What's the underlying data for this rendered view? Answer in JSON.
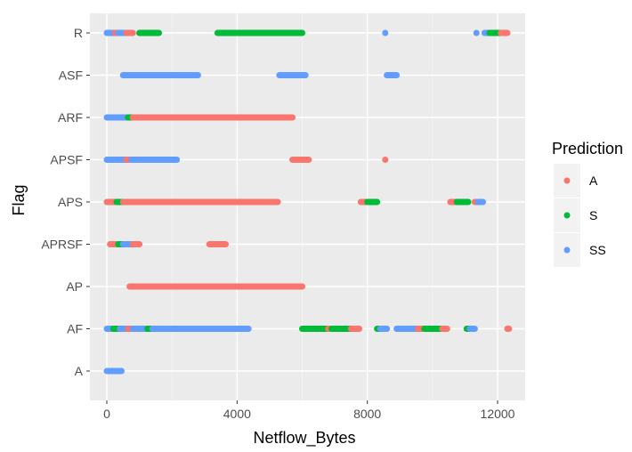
{
  "chart_data": {
    "type": "scatter",
    "xlabel": "Netflow_Bytes",
    "ylabel": "Flag",
    "xlim": [
      -500,
      12900
    ],
    "x_ticks": [
      0,
      4000,
      8000,
      12000
    ],
    "x_tick_labels": [
      "0",
      "4000",
      "8000",
      "12000"
    ],
    "categories": [
      "A",
      "AF",
      "AP",
      "APRSF",
      "APS",
      "APSF",
      "ARF",
      "ASF",
      "R"
    ],
    "grid": true,
    "legend": {
      "title": "Prediction",
      "placement": "right",
      "entries": [
        {
          "label": "A",
          "color": "#F8766D"
        },
        {
          "label": "S",
          "color": "#00BA38"
        },
        {
          "label": "SS",
          "color": "#619CFF"
        }
      ]
    },
    "segments": [
      {
        "flag": "R",
        "series": "SS",
        "x": [
          0,
          250
        ]
      },
      {
        "flag": "R",
        "series": "A",
        "x": [
          250,
          350
        ]
      },
      {
        "flag": "R",
        "series": "SS",
        "x": [
          350,
          600
        ]
      },
      {
        "flag": "R",
        "series": "A",
        "x": [
          600,
          800
        ]
      },
      {
        "flag": "R",
        "series": "S",
        "x": [
          1000,
          1600
        ]
      },
      {
        "flag": "R",
        "series": "S",
        "x": [
          3400,
          6000
        ]
      },
      {
        "flag": "R",
        "series": "SS",
        "x": [
          8550,
          8550
        ]
      },
      {
        "flag": "R",
        "series": "SS",
        "x": [
          11350,
          11350
        ]
      },
      {
        "flag": "R",
        "series": "SS",
        "x": [
          11600,
          11750
        ]
      },
      {
        "flag": "R",
        "series": "S",
        "x": [
          11750,
          12100
        ]
      },
      {
        "flag": "R",
        "series": "A",
        "x": [
          12100,
          12300
        ]
      },
      {
        "flag": "ASF",
        "series": "SS",
        "x": [
          500,
          2800
        ]
      },
      {
        "flag": "ASF",
        "series": "SS",
        "x": [
          5300,
          6100
        ]
      },
      {
        "flag": "ASF",
        "series": "SS",
        "x": [
          8600,
          8900
        ]
      },
      {
        "flag": "ARF",
        "series": "SS",
        "x": [
          0,
          650
        ]
      },
      {
        "flag": "ARF",
        "series": "S",
        "x": [
          650,
          800
        ]
      },
      {
        "flag": "ARF",
        "series": "A",
        "x": [
          800,
          5700
        ]
      },
      {
        "flag": "APSF",
        "series": "SS",
        "x": [
          0,
          600
        ]
      },
      {
        "flag": "APSF",
        "series": "A",
        "x": [
          600,
          750
        ]
      },
      {
        "flag": "APSF",
        "series": "SS",
        "x": [
          750,
          2150
        ]
      },
      {
        "flag": "APSF",
        "series": "A",
        "x": [
          5700,
          6200
        ]
      },
      {
        "flag": "APSF",
        "series": "A",
        "x": [
          8550,
          8550
        ]
      },
      {
        "flag": "APS",
        "series": "A",
        "x": [
          0,
          300
        ]
      },
      {
        "flag": "APS",
        "series": "S",
        "x": [
          300,
          500
        ]
      },
      {
        "flag": "APS",
        "series": "A",
        "x": [
          500,
          5250
        ]
      },
      {
        "flag": "APS",
        "series": "A",
        "x": [
          7800,
          8000
        ]
      },
      {
        "flag": "APS",
        "series": "S",
        "x": [
          8000,
          8300
        ]
      },
      {
        "flag": "APS",
        "series": "A",
        "x": [
          10550,
          10750
        ]
      },
      {
        "flag": "APS",
        "series": "S",
        "x": [
          10750,
          11100
        ]
      },
      {
        "flag": "APS",
        "series": "A",
        "x": [
          11300,
          11400
        ]
      },
      {
        "flag": "APS",
        "series": "SS",
        "x": [
          11400,
          11550
        ]
      },
      {
        "flag": "APRSF",
        "series": "A",
        "x": [
          100,
          350
        ]
      },
      {
        "flag": "APRSF",
        "series": "S",
        "x": [
          350,
          500
        ]
      },
      {
        "flag": "APRSF",
        "series": "SS",
        "x": [
          500,
          800
        ]
      },
      {
        "flag": "APRSF",
        "series": "A",
        "x": [
          800,
          1000
        ]
      },
      {
        "flag": "APRSF",
        "series": "A",
        "x": [
          3150,
          3650
        ]
      },
      {
        "flag": "AP",
        "series": "A",
        "x": [
          700,
          6000
        ]
      },
      {
        "flag": "AF",
        "series": "SS",
        "x": [
          0,
          200
        ]
      },
      {
        "flag": "AF",
        "series": "S",
        "x": [
          200,
          400
        ]
      },
      {
        "flag": "AF",
        "series": "SS",
        "x": [
          400,
          650
        ]
      },
      {
        "flag": "AF",
        "series": "A",
        "x": [
          650,
          800
        ]
      },
      {
        "flag": "AF",
        "series": "SS",
        "x": [
          800,
          1250
        ]
      },
      {
        "flag": "AF",
        "series": "S",
        "x": [
          1250,
          1400
        ]
      },
      {
        "flag": "AF",
        "series": "SS",
        "x": [
          1400,
          4350
        ]
      },
      {
        "flag": "AF",
        "series": "S",
        "x": [
          6000,
          6800
        ]
      },
      {
        "flag": "AF",
        "series": "A",
        "x": [
          6800,
          6900
        ]
      },
      {
        "flag": "AF",
        "series": "S",
        "x": [
          6900,
          7500
        ]
      },
      {
        "flag": "AF",
        "series": "A",
        "x": [
          7500,
          7750
        ]
      },
      {
        "flag": "AF",
        "series": "S",
        "x": [
          8300,
          8400
        ]
      },
      {
        "flag": "AF",
        "series": "SS",
        "x": [
          8400,
          8600
        ]
      },
      {
        "flag": "AF",
        "series": "SS",
        "x": [
          8900,
          9550
        ]
      },
      {
        "flag": "AF",
        "series": "A",
        "x": [
          9550,
          9750
        ]
      },
      {
        "flag": "AF",
        "series": "S",
        "x": [
          9750,
          10300
        ]
      },
      {
        "flag": "AF",
        "series": "A",
        "x": [
          10300,
          10450
        ]
      },
      {
        "flag": "AF",
        "series": "S",
        "x": [
          11050,
          11150
        ]
      },
      {
        "flag": "AF",
        "series": "SS",
        "x": [
          11150,
          11300
        ]
      },
      {
        "flag": "AF",
        "series": "A",
        "x": [
          12300,
          12350
        ]
      },
      {
        "flag": "A",
        "series": "SS",
        "x": [
          0,
          450
        ]
      }
    ]
  }
}
